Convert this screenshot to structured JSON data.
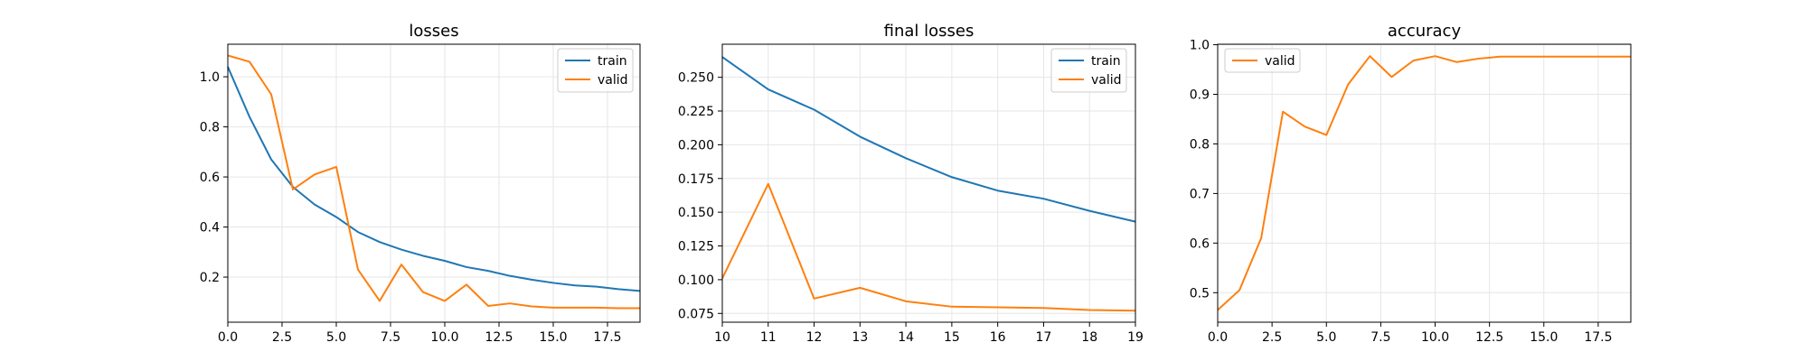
{
  "colors": {
    "train": "#1f77b4",
    "valid": "#ff7f0e",
    "grid": "#e6e6e6"
  },
  "chart_data": [
    {
      "type": "line",
      "title": "losses",
      "xlabel": "",
      "ylabel": "",
      "xlim": [
        0,
        19
      ],
      "ylim": [
        0.02,
        1.13
      ],
      "xticks": [
        0,
        2.5,
        5,
        7.5,
        10,
        12.5,
        15,
        17.5
      ],
      "xtick_labels": [
        "0.0",
        "2.5",
        "5.0",
        "7.5",
        "10.0",
        "12.5",
        "15.0",
        "17.5"
      ],
      "yticks": [
        0.2,
        0.4,
        0.6,
        0.8,
        1.0
      ],
      "ytick_labels": [
        "0.2",
        "0.4",
        "0.6",
        "0.8",
        "1.0"
      ],
      "grid": true,
      "legend": "upper right",
      "series": [
        {
          "name": "train",
          "color_key": "train",
          "x": [
            0,
            1,
            2,
            3,
            4,
            5,
            6,
            7,
            8,
            9,
            10,
            11,
            12,
            13,
            14,
            15,
            16,
            17,
            18,
            19
          ],
          "y": [
            1.04,
            0.84,
            0.67,
            0.56,
            0.49,
            0.44,
            0.38,
            0.34,
            0.31,
            0.285,
            0.265,
            0.24,
            0.225,
            0.205,
            0.19,
            0.177,
            0.167,
            0.162,
            0.152,
            0.145
          ]
        },
        {
          "name": "valid",
          "color_key": "valid",
          "x": [
            0,
            1,
            2,
            3,
            4,
            5,
            6,
            7,
            8,
            9,
            10,
            11,
            12,
            13,
            14,
            15,
            16,
            17,
            18,
            19
          ],
          "y": [
            1.085,
            1.06,
            0.93,
            0.55,
            0.61,
            0.64,
            0.23,
            0.105,
            0.25,
            0.14,
            0.105,
            0.17,
            0.085,
            0.095,
            0.083,
            0.078,
            0.078,
            0.078,
            0.076,
            0.076
          ]
        }
      ]
    },
    {
      "type": "line",
      "title": "final losses",
      "xlabel": "",
      "ylabel": "",
      "xlim": [
        10,
        19
      ],
      "ylim": [
        0.0685,
        0.2745
      ],
      "xticks": [
        10,
        11,
        12,
        13,
        14,
        15,
        16,
        17,
        18,
        19
      ],
      "xtick_labels": [
        "10",
        "11",
        "12",
        "13",
        "14",
        "15",
        "16",
        "17",
        "18",
        "19"
      ],
      "yticks": [
        0.075,
        0.1,
        0.125,
        0.15,
        0.175,
        0.2,
        0.225,
        0.25
      ],
      "ytick_labels": [
        "0.075",
        "0.100",
        "0.125",
        "0.150",
        "0.175",
        "0.200",
        "0.225",
        "0.250"
      ],
      "grid": true,
      "legend": "upper right",
      "series": [
        {
          "name": "train",
          "color_key": "train",
          "x": [
            10,
            11,
            12,
            13,
            14,
            15,
            16,
            17,
            18,
            19
          ],
          "y": [
            0.265,
            0.241,
            0.226,
            0.206,
            0.19,
            0.176,
            0.166,
            0.16,
            0.151,
            0.143
          ]
        },
        {
          "name": "valid",
          "color_key": "valid",
          "x": [
            10,
            11,
            12,
            13,
            14,
            15,
            16,
            17,
            18,
            19
          ],
          "y": [
            0.101,
            0.171,
            0.086,
            0.094,
            0.084,
            0.08,
            0.0795,
            0.079,
            0.0775,
            0.077
          ]
        }
      ]
    },
    {
      "type": "line",
      "title": "accuracy",
      "xlabel": "",
      "ylabel": "",
      "xlim": [
        0,
        19
      ],
      "ylim": [
        0.4405,
        1.001
      ],
      "xticks": [
        0,
        2.5,
        5,
        7.5,
        10,
        12.5,
        15,
        17.5
      ],
      "xtick_labels": [
        "0.0",
        "2.5",
        "5.0",
        "7.5",
        "10.0",
        "12.5",
        "15.0",
        "17.5"
      ],
      "yticks": [
        0.5,
        0.6,
        0.7,
        0.8,
        0.9,
        1.0
      ],
      "ytick_labels": [
        "0.5",
        "0.6",
        "0.7",
        "0.8",
        "0.9",
        "1.0"
      ],
      "grid": true,
      "legend": "upper left",
      "series": [
        {
          "name": "valid",
          "color_key": "valid",
          "x": [
            0,
            1,
            2,
            3,
            4,
            5,
            6,
            7,
            8,
            9,
            10,
            11,
            12,
            13,
            14,
            15,
            16,
            17,
            18,
            19
          ],
          "y": [
            0.465,
            0.505,
            0.61,
            0.865,
            0.835,
            0.818,
            0.92,
            0.977,
            0.935,
            0.968,
            0.977,
            0.965,
            0.972,
            0.976,
            0.976,
            0.976,
            0.976,
            0.976,
            0.976,
            0.976
          ]
        }
      ]
    }
  ]
}
